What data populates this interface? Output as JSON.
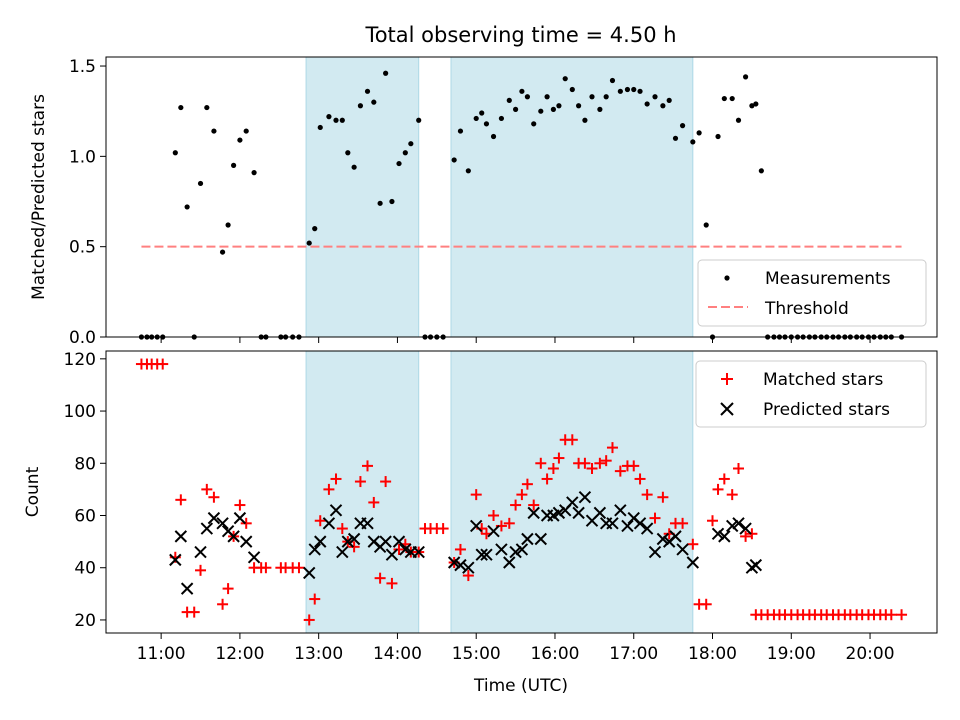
{
  "figure": {
    "title": "Total observing time = 4.50 h"
  },
  "colors": {
    "shade": "#add8e6",
    "measure": "#000000",
    "threshold": "#ff8080",
    "matched": "#ff0000",
    "predicted": "#000000"
  },
  "chart_data": [
    {
      "type": "scatter",
      "ylabel": "Matched/Predicted stars",
      "xlim_hours": [
        10.3,
        20.85
      ],
      "ylim": [
        0,
        1.55
      ],
      "yticks": [
        0.0,
        0.5,
        1.0,
        1.5
      ],
      "ytick_labels": [
        "0.0",
        "0.5",
        "1.0",
        "1.5"
      ],
      "shaded_intervals_hours": [
        [
          12.84,
          14.27
        ],
        [
          14.68,
          17.75
        ]
      ],
      "threshold": {
        "name": "Threshold",
        "value": 0.5,
        "x_range_hours": [
          10.75,
          20.4
        ]
      },
      "legend": {
        "position": "lower-right",
        "entries": [
          "Measurements",
          "Threshold"
        ]
      },
      "series": [
        {
          "name": "Measurements",
          "x_hours": [
            10.75,
            10.82,
            10.88,
            10.95,
            11.02,
            11.18,
            11.25,
            11.33,
            11.42,
            11.5,
            11.58,
            11.67,
            11.78,
            11.85,
            11.92,
            12.0,
            12.08,
            12.18,
            12.27,
            12.33,
            12.52,
            12.58,
            12.67,
            12.75,
            12.88,
            12.95,
            13.02,
            13.13,
            13.22,
            13.3,
            13.37,
            13.45,
            13.53,
            13.62,
            13.7,
            13.78,
            13.85,
            13.93,
            14.02,
            14.1,
            14.17,
            14.27,
            14.35,
            14.42,
            14.5,
            14.58,
            14.72,
            14.8,
            14.9,
            15.0,
            15.07,
            15.13,
            15.22,
            15.32,
            15.42,
            15.5,
            15.58,
            15.65,
            15.73,
            15.82,
            15.9,
            15.98,
            16.05,
            16.13,
            16.22,
            16.3,
            16.38,
            16.47,
            16.57,
            16.65,
            16.73,
            16.83,
            16.92,
            17.0,
            17.08,
            17.17,
            17.27,
            17.37,
            17.45,
            17.53,
            17.62,
            17.75,
            17.83,
            17.92,
            18.0,
            18.07,
            18.15,
            18.25,
            18.33,
            18.42,
            18.5,
            18.55,
            18.62,
            18.7,
            18.78,
            18.85,
            18.92,
            19.0,
            19.08,
            19.15,
            19.23,
            19.3,
            19.38,
            19.45,
            19.53,
            19.6,
            19.68,
            19.75,
            19.83,
            19.9,
            19.98,
            20.05,
            20.13,
            20.2,
            20.27,
            20.4
          ],
          "y": [
            0,
            0,
            0,
            0,
            0,
            1.02,
            1.27,
            0.72,
            0,
            0.85,
            1.27,
            1.14,
            0.47,
            0.62,
            0.95,
            1.09,
            1.14,
            0.91,
            0,
            0,
            0,
            0,
            0,
            0,
            0.52,
            0.6,
            1.16,
            1.22,
            1.2,
            1.2,
            1.02,
            0.94,
            1.28,
            1.36,
            1.3,
            0.74,
            1.46,
            0.75,
            0.96,
            1.02,
            1.07,
            1.2,
            0,
            0,
            0,
            0,
            0.98,
            1.14,
            0.92,
            1.21,
            1.24,
            1.18,
            1.11,
            1.21,
            1.31,
            1.26,
            1.36,
            1.33,
            1.18,
            1.25,
            1.33,
            1.26,
            1.28,
            1.43,
            1.37,
            1.28,
            1.2,
            1.33,
            1.26,
            1.33,
            1.42,
            1.36,
            1.37,
            1.37,
            1.36,
            1.29,
            1.33,
            1.28,
            1.31,
            1.1,
            1.17,
            1.08,
            1.13,
            0.62,
            0,
            1.11,
            1.32,
            1.32,
            1.2,
            1.44,
            1.28,
            1.29,
            0.92,
            0,
            0,
            0,
            0,
            0,
            0,
            0,
            0,
            0,
            0,
            0,
            0,
            0,
            0,
            0,
            0,
            0,
            0,
            0,
            0,
            0,
            0,
            0
          ]
        }
      ]
    },
    {
      "type": "scatter",
      "ylabel": "Count",
      "xlabel": "Time (UTC)",
      "xlim_hours": [
        10.3,
        20.85
      ],
      "ylim": [
        15,
        123
      ],
      "yticks": [
        20,
        40,
        60,
        80,
        100,
        120
      ],
      "ytick_labels": [
        "20",
        "40",
        "60",
        "80",
        "100",
        "120"
      ],
      "xticks_hours": [
        11,
        12,
        13,
        14,
        15,
        16,
        17,
        18,
        19,
        20
      ],
      "xtick_labels": [
        "11:00",
        "12:00",
        "13:00",
        "14:00",
        "15:00",
        "16:00",
        "17:00",
        "18:00",
        "19:00",
        "20:00"
      ],
      "shaded_intervals_hours": [
        [
          12.84,
          14.27
        ],
        [
          14.68,
          17.75
        ]
      ],
      "legend": {
        "position": "upper-right",
        "entries": [
          "Matched stars",
          "Predicted stars"
        ]
      },
      "series": [
        {
          "name": "Matched stars",
          "marker": "plus",
          "x_hours": [
            10.75,
            10.82,
            10.88,
            10.95,
            11.02,
            11.18,
            11.25,
            11.33,
            11.42,
            11.5,
            11.58,
            11.67,
            11.78,
            11.85,
            11.92,
            12.0,
            12.08,
            12.18,
            12.27,
            12.33,
            12.52,
            12.58,
            12.67,
            12.75,
            12.88,
            12.95,
            13.02,
            13.13,
            13.22,
            13.3,
            13.37,
            13.45,
            13.53,
            13.62,
            13.7,
            13.78,
            13.85,
            13.93,
            14.02,
            14.1,
            14.17,
            14.27,
            14.35,
            14.42,
            14.5,
            14.58,
            14.72,
            14.8,
            14.9,
            15.0,
            15.07,
            15.13,
            15.22,
            15.32,
            15.42,
            15.5,
            15.58,
            15.65,
            15.73,
            15.82,
            15.9,
            15.98,
            16.05,
            16.13,
            16.22,
            16.3,
            16.38,
            16.47,
            16.57,
            16.65,
            16.73,
            16.83,
            16.92,
            17.0,
            17.08,
            17.17,
            17.27,
            17.37,
            17.45,
            17.53,
            17.62,
            17.75,
            17.83,
            17.92,
            18.0,
            18.07,
            18.15,
            18.25,
            18.33,
            18.42,
            18.5,
            18.55,
            18.62,
            18.7,
            18.78,
            18.85,
            18.92,
            19.0,
            19.08,
            19.15,
            19.23,
            19.3,
            19.38,
            19.45,
            19.53,
            19.6,
            19.68,
            19.75,
            19.83,
            19.9,
            19.98,
            20.05,
            20.13,
            20.2,
            20.27,
            20.4
          ],
          "y": [
            118,
            118,
            118,
            118,
            118,
            44,
            66,
            23,
            23,
            39,
            70,
            67,
            26,
            32,
            52,
            64,
            57,
            40,
            40,
            40,
            40,
            40,
            40,
            40,
            20,
            28,
            58,
            70,
            74,
            55,
            50,
            48,
            73,
            79,
            65,
            36,
            73,
            34,
            47,
            49,
            46,
            46,
            55,
            55,
            55,
            55,
            42,
            47,
            37,
            68,
            55,
            53,
            60,
            56,
            57,
            64,
            68,
            72,
            64,
            80,
            74,
            78,
            82,
            89,
            89,
            80,
            80,
            78,
            80,
            81,
            86,
            77,
            79,
            79,
            74,
            68,
            59,
            67,
            53,
            57,
            57,
            49,
            26,
            26,
            58,
            70,
            74,
            68,
            78,
            52,
            53,
            22,
            22,
            22,
            22,
            22,
            22,
            22,
            22,
            22,
            22,
            22,
            22,
            22,
            22,
            22,
            22,
            22,
            22,
            22,
            22,
            22,
            22,
            22,
            22,
            22
          ]
        },
        {
          "name": "Predicted stars",
          "marker": "x",
          "x_hours": [
            11.18,
            11.25,
            11.33,
            11.5,
            11.58,
            11.67,
            11.78,
            11.85,
            11.92,
            12.0,
            12.08,
            12.18,
            12.88,
            12.95,
            13.02,
            13.13,
            13.22,
            13.3,
            13.37,
            13.45,
            13.53,
            13.62,
            13.7,
            13.78,
            13.85,
            13.93,
            14.02,
            14.1,
            14.17,
            14.27,
            14.72,
            14.8,
            14.9,
            15.0,
            15.07,
            15.13,
            15.22,
            15.32,
            15.42,
            15.5,
            15.58,
            15.65,
            15.73,
            15.82,
            15.9,
            15.98,
            16.05,
            16.13,
            16.22,
            16.3,
            16.38,
            16.47,
            16.57,
            16.65,
            16.73,
            16.83,
            16.92,
            17.0,
            17.08,
            17.17,
            17.27,
            17.37,
            17.45,
            17.53,
            17.62,
            17.75,
            18.07,
            18.15,
            18.25,
            18.33,
            18.42,
            18.5,
            18.55
          ],
          "y": [
            43,
            52,
            32,
            46,
            55,
            59,
            57,
            54,
            52,
            59,
            50,
            44,
            38,
            47,
            50,
            57,
            62,
            46,
            50,
            51,
            57,
            57,
            50,
            48,
            50,
            45,
            50,
            47,
            46,
            46,
            42,
            41,
            40,
            56,
            45,
            45,
            54,
            47,
            42,
            46,
            47,
            51,
            61,
            51,
            60,
            60,
            61,
            62,
            65,
            61,
            67,
            58,
            61,
            57,
            57,
            62,
            56,
            59,
            57,
            55,
            46,
            51,
            50,
            52,
            47,
            42,
            53,
            52,
            56,
            57,
            55,
            40,
            41
          ]
        }
      ]
    }
  ]
}
